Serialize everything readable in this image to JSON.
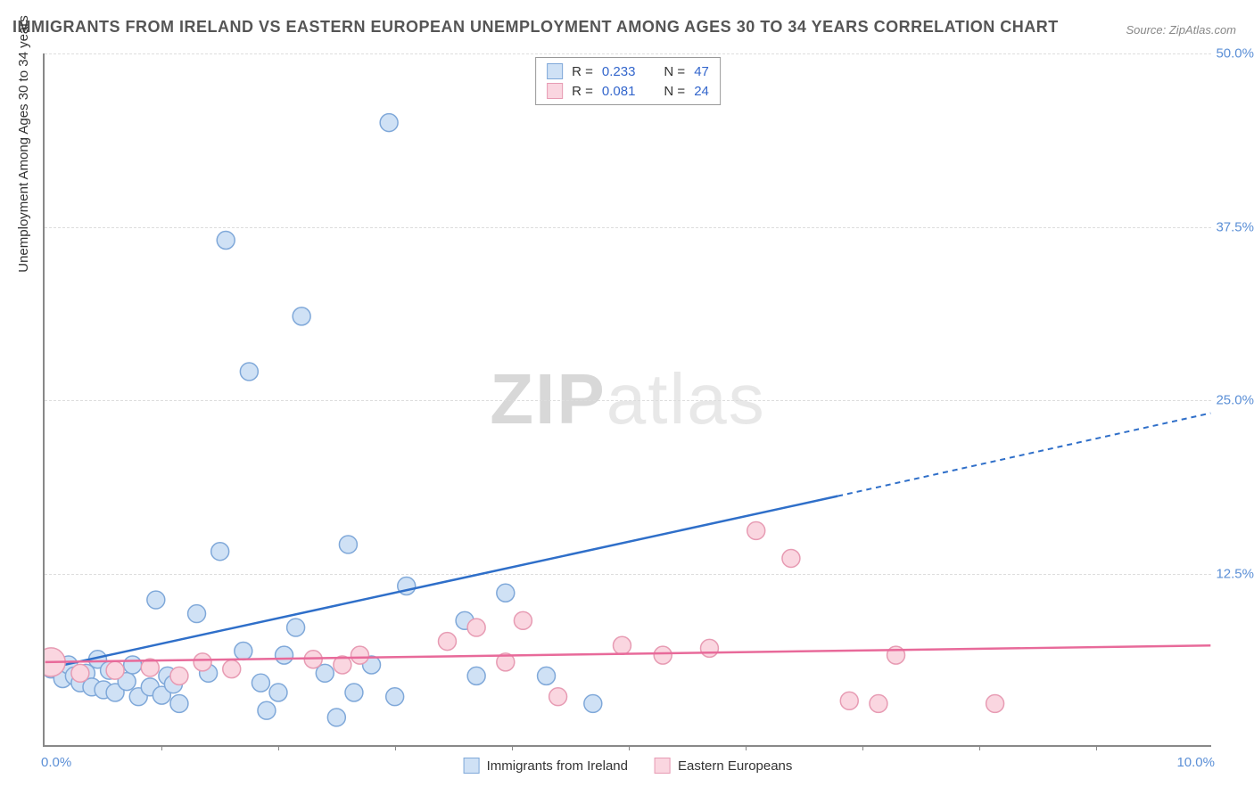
{
  "title": "IMMIGRANTS FROM IRELAND VS EASTERN EUROPEAN UNEMPLOYMENT AMONG AGES 30 TO 34 YEARS CORRELATION CHART",
  "source": "Source: ZipAtlas.com",
  "ylabel": "Unemployment Among Ages 30 to 34 years",
  "watermark_a": "ZIP",
  "watermark_b": "atlas",
  "chart": {
    "type": "scatter",
    "xlim": [
      0,
      10
    ],
    "ylim": [
      0,
      50
    ],
    "ytick_labels": [
      "12.5%",
      "25.0%",
      "37.5%",
      "50.0%"
    ],
    "ytick_vals": [
      12.5,
      25.0,
      37.5,
      50.0
    ],
    "x_left_label": "0.0%",
    "x_right_label": "10.0%",
    "xtick_marks": [
      1,
      2,
      3,
      4,
      5,
      6,
      7,
      8,
      9
    ],
    "background_color": "#ffffff",
    "grid_color": "#dddddd",
    "series": [
      {
        "name": "Immigrants from Ireland",
        "marker_fill": "#cfe1f5",
        "marker_stroke": "#7fa8d9",
        "line_color": "#2f6fc9",
        "marker_r": 10,
        "r_stat": "0.233",
        "n_stat": "47",
        "trend": {
          "x1": 0.0,
          "y1": 5.5,
          "x2": 6.8,
          "y2": 18.0,
          "x2_dash": 10.0,
          "y2_dash": 24.0
        },
        "points": [
          {
            "x": 0.05,
            "y": 5.5
          },
          {
            "x": 0.1,
            "y": 6.0
          },
          {
            "x": 0.15,
            "y": 5.2
          },
          {
            "x": 0.15,
            "y": 4.8
          },
          {
            "x": 0.2,
            "y": 5.8
          },
          {
            "x": 0.25,
            "y": 5.0
          },
          {
            "x": 0.3,
            "y": 4.5
          },
          {
            "x": 0.35,
            "y": 5.2
          },
          {
            "x": 0.4,
            "y": 4.2
          },
          {
            "x": 0.45,
            "y": 6.2
          },
          {
            "x": 0.5,
            "y": 4.0
          },
          {
            "x": 0.55,
            "y": 5.4
          },
          {
            "x": 0.6,
            "y": 3.8
          },
          {
            "x": 0.7,
            "y": 4.6
          },
          {
            "x": 0.75,
            "y": 5.8
          },
          {
            "x": 0.8,
            "y": 3.5
          },
          {
            "x": 0.9,
            "y": 4.2
          },
          {
            "x": 0.95,
            "y": 10.5
          },
          {
            "x": 1.0,
            "y": 3.6
          },
          {
            "x": 1.05,
            "y": 5.0
          },
          {
            "x": 1.1,
            "y": 4.4
          },
          {
            "x": 1.15,
            "y": 3.0
          },
          {
            "x": 1.3,
            "y": 9.5
          },
          {
            "x": 1.4,
            "y": 5.2
          },
          {
            "x": 1.5,
            "y": 14.0
          },
          {
            "x": 1.55,
            "y": 36.5
          },
          {
            "x": 1.7,
            "y": 6.8
          },
          {
            "x": 1.75,
            "y": 27.0
          },
          {
            "x": 1.85,
            "y": 4.5
          },
          {
            "x": 1.9,
            "y": 2.5
          },
          {
            "x": 2.0,
            "y": 3.8
          },
          {
            "x": 2.05,
            "y": 6.5
          },
          {
            "x": 2.15,
            "y": 8.5
          },
          {
            "x": 2.2,
            "y": 31.0
          },
          {
            "x": 2.4,
            "y": 5.2
          },
          {
            "x": 2.5,
            "y": 2.0
          },
          {
            "x": 2.6,
            "y": 14.5
          },
          {
            "x": 2.65,
            "y": 3.8
          },
          {
            "x": 2.8,
            "y": 5.8
          },
          {
            "x": 2.95,
            "y": 45.0
          },
          {
            "x": 3.0,
            "y": 3.5
          },
          {
            "x": 3.1,
            "y": 11.5
          },
          {
            "x": 3.6,
            "y": 9.0
          },
          {
            "x": 3.7,
            "y": 5.0
          },
          {
            "x": 3.95,
            "y": 11.0
          },
          {
            "x": 4.3,
            "y": 5.0
          },
          {
            "x": 4.7,
            "y": 3.0
          }
        ]
      },
      {
        "name": "Eastern Europeans",
        "marker_fill": "#fad6e0",
        "marker_stroke": "#e79bb3",
        "line_color": "#e86a9a",
        "marker_r": 10,
        "r_stat": "0.081",
        "n_stat": "24",
        "trend": {
          "x1": 0.0,
          "y1": 6.0,
          "x2": 10.0,
          "y2": 7.2,
          "x2_dash": 10.0,
          "y2_dash": 7.2
        },
        "points": [
          {
            "x": 0.05,
            "y": 6.0,
            "r": 16
          },
          {
            "x": 0.3,
            "y": 5.2
          },
          {
            "x": 0.6,
            "y": 5.4
          },
          {
            "x": 0.9,
            "y": 5.6
          },
          {
            "x": 1.15,
            "y": 5.0
          },
          {
            "x": 1.35,
            "y": 6.0
          },
          {
            "x": 1.6,
            "y": 5.5
          },
          {
            "x": 2.3,
            "y": 6.2
          },
          {
            "x": 2.55,
            "y": 5.8
          },
          {
            "x": 2.7,
            "y": 6.5
          },
          {
            "x": 3.45,
            "y": 7.5
          },
          {
            "x": 3.7,
            "y": 8.5
          },
          {
            "x": 3.95,
            "y": 6.0
          },
          {
            "x": 4.1,
            "y": 9.0
          },
          {
            "x": 4.4,
            "y": 3.5
          },
          {
            "x": 4.95,
            "y": 7.2
          },
          {
            "x": 5.3,
            "y": 6.5
          },
          {
            "x": 5.7,
            "y": 7.0
          },
          {
            "x": 6.1,
            "y": 15.5
          },
          {
            "x": 6.4,
            "y": 13.5
          },
          {
            "x": 6.9,
            "y": 3.2
          },
          {
            "x": 7.15,
            "y": 3.0
          },
          {
            "x": 7.3,
            "y": 6.5
          },
          {
            "x": 8.15,
            "y": 3.0
          }
        ]
      }
    ]
  },
  "legend_bottom": {
    "a": "Immigrants from Ireland",
    "b": "Eastern Europeans"
  },
  "legend_labels": {
    "r": "R =",
    "n": "N ="
  }
}
